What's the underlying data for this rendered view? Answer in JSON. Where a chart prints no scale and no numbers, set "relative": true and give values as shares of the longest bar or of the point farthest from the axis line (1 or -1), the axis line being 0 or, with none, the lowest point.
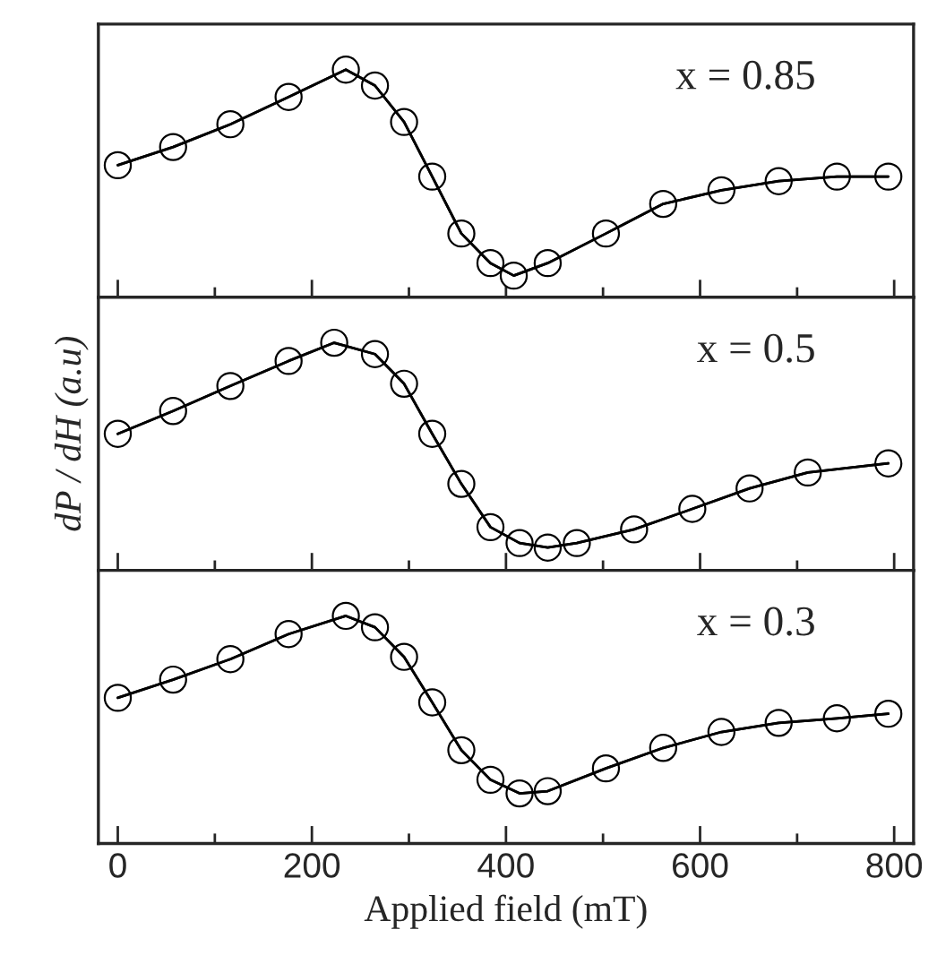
{
  "chart_data": [
    {
      "type": "line",
      "relative": true,
      "xlim": [
        -20,
        820
      ],
      "xticks": [
        0,
        200,
        400,
        600,
        800
      ],
      "tick_labels": false,
      "marker": "circle",
      "line_style": "solid",
      "annotations": [
        "x = 0.85"
      ],
      "x": [
        0,
        57,
        116,
        176,
        235,
        265,
        295,
        324,
        354,
        384,
        408,
        443,
        503,
        562,
        622,
        681,
        741,
        794
      ],
      "series": [
        {
          "color": "#000000",
          "values": [
            0.58,
            0.66,
            0.76,
            0.88,
            1.0,
            0.93,
            0.77,
            0.53,
            0.28,
            0.15,
            0.095,
            0.15,
            0.28,
            0.41,
            0.47,
            0.51,
            0.53,
            0.53
          ]
        }
      ]
    },
    {
      "type": "line",
      "relative": true,
      "xlim": [
        -20,
        820
      ],
      "xticks": [
        0,
        200,
        400,
        600,
        800
      ],
      "tick_labels": false,
      "marker": "circle",
      "line_style": "solid",
      "ylabel": "dP / dH (a.u)",
      "annotations": [
        "x = 0.5"
      ],
      "x": [
        0,
        57,
        116,
        176,
        223,
        265,
        295,
        324,
        354,
        384,
        414,
        443,
        473,
        532,
        592,
        651,
        711,
        794
      ],
      "series": [
        {
          "color": "#000000",
          "values": [
            0.6,
            0.7,
            0.81,
            0.92,
            1.0,
            0.95,
            0.82,
            0.6,
            0.38,
            0.19,
            0.12,
            0.1,
            0.12,
            0.18,
            0.27,
            0.36,
            0.43,
            0.47
          ]
        }
      ]
    },
    {
      "type": "line",
      "relative": true,
      "xlim": [
        -20,
        820
      ],
      "xticks": [
        0,
        200,
        400,
        600,
        800
      ],
      "tick_labels": "x",
      "marker": "circle",
      "line_style": "solid",
      "xlabel": "Applied field (mT)",
      "annotations": [
        "x = 0.3"
      ],
      "x": [
        0,
        57,
        116,
        176,
        235,
        265,
        295,
        324,
        354,
        384,
        414,
        443,
        503,
        562,
        622,
        681,
        741,
        794
      ],
      "series": [
        {
          "color": "#000000",
          "values": [
            0.64,
            0.72,
            0.81,
            0.92,
            1.0,
            0.95,
            0.82,
            0.62,
            0.41,
            0.28,
            0.22,
            0.23,
            0.33,
            0.42,
            0.49,
            0.53,
            0.55,
            0.57
          ]
        }
      ]
    }
  ]
}
